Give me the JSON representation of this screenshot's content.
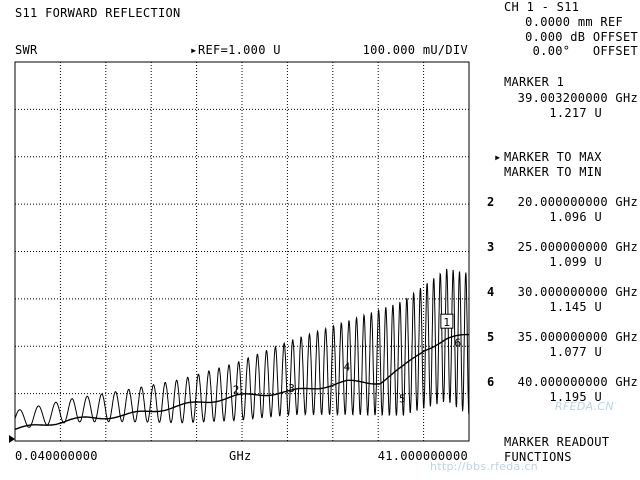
{
  "header": {
    "title": "S11 FORWARD REFLECTION",
    "format": "SWR",
    "ref_marker": "▸",
    "ref": "REF=1.000 U",
    "scale": "100.000 mU/DIV"
  },
  "channel": {
    "title": "CH 1 - S11",
    "ref_line": "0.0000 mm REF",
    "db_offset": "0.000 dB OFFSET",
    "deg_offset": "0.00°   OFFSET"
  },
  "active_marker": {
    "title": "MARKER 1",
    "freq": "39.003200000 GHz",
    "value": "1.217 U"
  },
  "softkeys": {
    "selector": "▸",
    "to_max": "MARKER TO MAX",
    "to_min": "MARKER TO MIN",
    "readout_line1": "MARKER READOUT",
    "readout_line2": "FUNCTIONS"
  },
  "markers": [
    {
      "num": "2",
      "freq": "20.000000000 GHz",
      "value": "1.096 U"
    },
    {
      "num": "3",
      "freq": "25.000000000 GHz",
      "value": "1.099 U"
    },
    {
      "num": "4",
      "freq": "30.000000000 GHz",
      "value": "1.145 U"
    },
    {
      "num": "5",
      "freq": "35.000000000 GHz",
      "value": "1.077 U"
    },
    {
      "num": "6",
      "freq": "40.000000000 GHz",
      "value": "1.195 U"
    }
  ],
  "axis": {
    "start": "0.040000000",
    "unit": "GHz",
    "stop": "41.000000000"
  },
  "watermark": {
    "site": "RFEDA.CN",
    "url": "http://bbs.rfeda.cn"
  },
  "chart_data": {
    "type": "line",
    "x_start": 0.04,
    "x_stop": 41.0,
    "x_unit": "GHz",
    "ref_value": 1.0,
    "scale_per_div": 0.1,
    "y_unit": "U",
    "grid": true,
    "series": [
      {
        "x": [
          0.04,
          5,
          10,
          15,
          20,
          25,
          30,
          35,
          39,
          41
        ],
        "y": [
          1.04,
          1.06,
          1.07,
          1.08,
          1.1,
          1.13,
          1.15,
          1.17,
          1.22,
          1.2
        ]
      },
      {
        "x": [
          0.04,
          5,
          10,
          15,
          20,
          25,
          30,
          33,
          35,
          37,
          39,
          41
        ],
        "y": [
          1.02,
          1.04,
          1.05,
          1.07,
          1.09,
          1.1,
          1.12,
          1.12,
          1.15,
          1.19,
          1.21,
          1.22
        ]
      }
    ],
    "markers": [
      {
        "label": "1",
        "x": 39.0032,
        "y": 1.217
      },
      {
        "label": "2",
        "x": 20.0,
        "y": 1.096
      },
      {
        "label": "3",
        "x": 25.0,
        "y": 1.099
      },
      {
        "label": "4",
        "x": 30.0,
        "y": 1.145
      },
      {
        "label": "5",
        "x": 35.0,
        "y": 1.077
      },
      {
        "label": "6",
        "x": 40.0,
        "y": 1.195
      }
    ]
  }
}
